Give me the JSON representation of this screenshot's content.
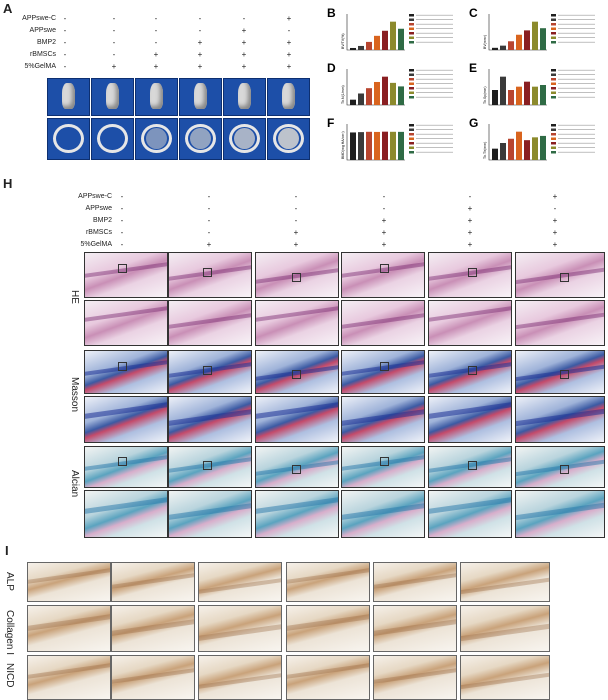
{
  "panel_labels": {
    "a": "A",
    "b": "B",
    "c": "C",
    "d": "D",
    "e": "E",
    "f": "F",
    "g": "G",
    "h": "H",
    "i": "I"
  },
  "top_treatments": {
    "rows": [
      {
        "label": "APPswe-C",
        "symbols": [
          "-",
          "-",
          "-",
          "-",
          "-",
          "+"
        ]
      },
      {
        "label": "APPswe",
        "symbols": [
          "-",
          "-",
          "-",
          "-",
          "+",
          "-"
        ]
      },
      {
        "label": "BMP2",
        "symbols": [
          "-",
          "-",
          "-",
          "+",
          "+",
          "+"
        ]
      },
      {
        "label": "rBMSCs",
        "symbols": [
          "-",
          "-",
          "+",
          "+",
          "+",
          "+"
        ]
      },
      {
        "label": "5%GelMA",
        "symbols": [
          "-",
          "+",
          "+",
          "+",
          "+",
          "+"
        ]
      }
    ]
  },
  "h_treatments": {
    "rows": [
      {
        "label": "APPswe-C",
        "symbols": [
          "-",
          "-",
          "-",
          "-",
          "-",
          "+"
        ]
      },
      {
        "label": "APPswe",
        "symbols": [
          "-",
          "-",
          "-",
          "-",
          "+",
          "-"
        ]
      },
      {
        "label": "BMP2",
        "symbols": [
          "-",
          "-",
          "-",
          "+",
          "+",
          "+"
        ]
      },
      {
        "label": "rBMSCs",
        "symbols": [
          "-",
          "-",
          "+",
          "+",
          "+",
          "+"
        ]
      },
      {
        "label": "5%GelMA",
        "symbols": [
          "-",
          "+",
          "+",
          "+",
          "+",
          "+"
        ]
      }
    ]
  },
  "stains": {
    "he": "HE",
    "masson": "Masson",
    "alcian": "Alcian"
  },
  "ihc": {
    "alp": "ALP",
    "col": "Collagen I",
    "nicd": "NICD"
  },
  "colors": {
    "ct_bg": "#1d4fa8",
    "bar_colors": [
      "#1f1f1f",
      "#3a3a3a",
      "#b8452f",
      "#d9641e",
      "#8a1f22",
      "#8c8a2c",
      "#2f6b45"
    ]
  },
  "chart_data": [
    {
      "type": "bar",
      "panel": "B",
      "ylabel": "BV/TV(%)",
      "values": [
        2,
        4,
        8,
        14,
        19,
        28,
        21
      ]
    },
    {
      "type": "bar",
      "panel": "C",
      "ylabel": "BV(mm³)",
      "values": [
        1,
        2,
        4,
        7,
        9,
        13,
        10
      ]
    },
    {
      "type": "bar",
      "panel": "D",
      "ylabel": "Tb.N(1/mm)",
      "values": [
        1.2,
        2.6,
        3.8,
        5.2,
        6.4,
        5.0,
        4.2
      ]
    },
    {
      "type": "bar",
      "panel": "E",
      "ylabel": "Tb.Sp(mm)",
      "values": [
        0.45,
        0.85,
        0.45,
        0.55,
        0.7,
        0.55,
        0.6
      ]
    },
    {
      "type": "bar",
      "panel": "F",
      "ylabel": "BMD(mg HA/cm³)",
      "values": [
        420,
        425,
        430,
        428,
        432,
        430,
        429
      ]
    },
    {
      "type": "bar",
      "panel": "G",
      "ylabel": "Tb.Th(mm)",
      "values": [
        0.08,
        0.12,
        0.15,
        0.2,
        0.14,
        0.16,
        0.17
      ]
    }
  ]
}
